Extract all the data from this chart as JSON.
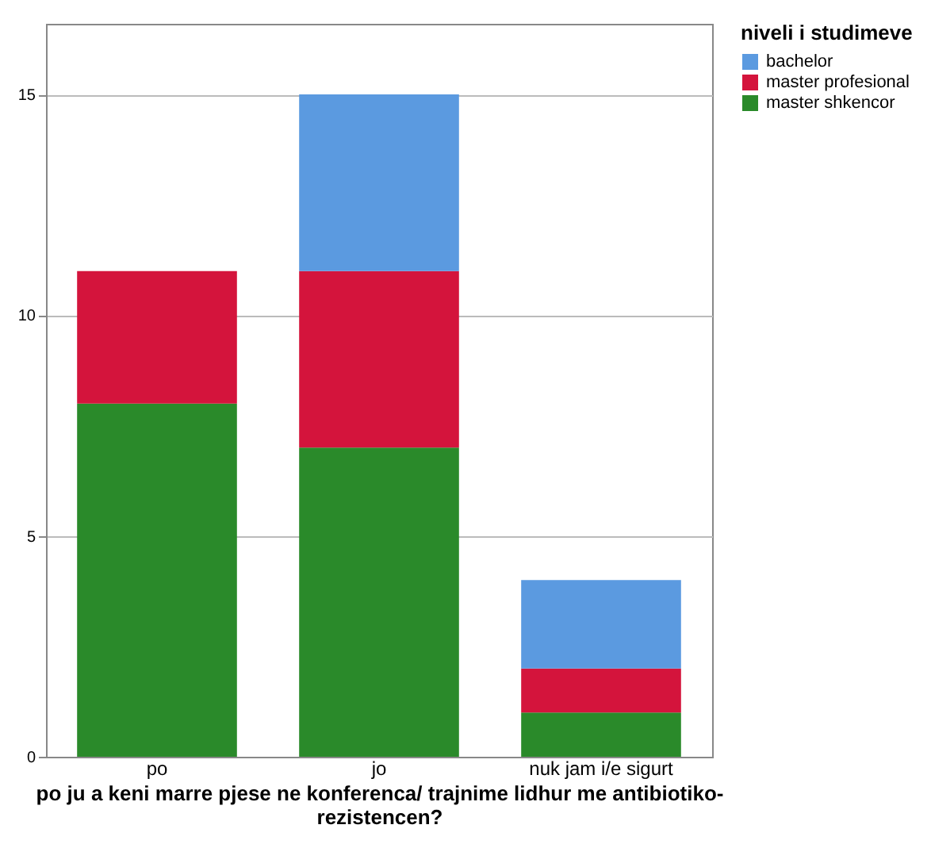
{
  "chart_data": {
    "type": "bar",
    "stacked": true,
    "categories": [
      "po",
      "jo",
      "nuk jam i/e sigurt"
    ],
    "xlabel": "po ju a keni marre pjese ne konferenca/ trajnime lidhur me antibiotiko-rezistencen?",
    "legend_title": "niveli i studimeve",
    "series": [
      {
        "name": "master shkencor",
        "color": "#2a8a2a",
        "values": [
          8,
          7,
          1
        ]
      },
      {
        "name": "master  profesional",
        "color": "#d4143c",
        "values": [
          3,
          4,
          1
        ]
      },
      {
        "name": "bachelor",
        "color": "#5b9ae0",
        "values": [
          0,
          4,
          2
        ]
      }
    ],
    "ylim": [
      0,
      16.6
    ],
    "yticks": [
      0,
      5,
      10,
      15
    ],
    "grid": "y",
    "legend": "top right"
  }
}
